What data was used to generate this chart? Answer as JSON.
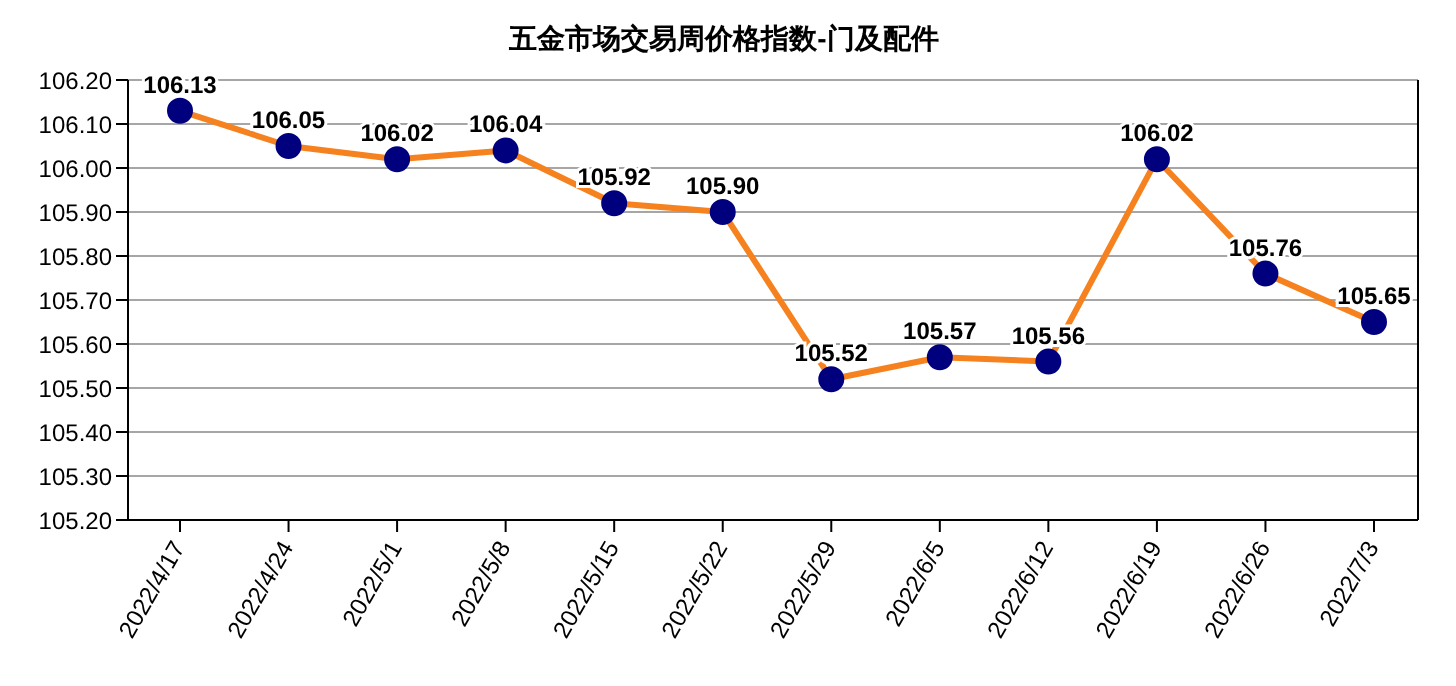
{
  "chart_data": {
    "type": "line",
    "title": "五金市场交易周价格指数-门及配件",
    "categories": [
      "2022/4/17",
      "2022/4/24",
      "2022/5/1",
      "2022/5/8",
      "2022/5/15",
      "2022/5/22",
      "2022/5/29",
      "2022/6/5",
      "2022/6/12",
      "2022/6/19",
      "2022/6/26",
      "2022/7/3"
    ],
    "series": [
      {
        "color": "#f5821f",
        "values": [
          106.13,
          106.05,
          106.02,
          106.04,
          105.92,
          105.9,
          105.52,
          105.57,
          105.56,
          106.02,
          105.76,
          105.65
        ],
        "value_labels": [
          "106.13",
          "106.05",
          "106.02",
          "106.04",
          "105.92",
          "105.90",
          "105.52",
          "105.57",
          "105.56",
          "106.02",
          "105.76",
          "105.65"
        ]
      }
    ],
    "ylim": [
      105.2,
      106.2
    ],
    "yticks": [
      {
        "value": 105.2,
        "label": "105.20"
      },
      {
        "value": 105.3,
        "label": "105.30"
      },
      {
        "value": 105.4,
        "label": "105.40"
      },
      {
        "value": 105.5,
        "label": "105.50"
      },
      {
        "value": 105.6,
        "label": "105.60"
      },
      {
        "value": 105.7,
        "label": "105.70"
      },
      {
        "value": 105.8,
        "label": "105.80"
      },
      {
        "value": 105.9,
        "label": "105.90"
      },
      {
        "value": 106.0,
        "label": "106.00"
      },
      {
        "value": 106.1,
        "label": "106.10"
      },
      {
        "value": 106.2,
        "label": "106.20"
      }
    ],
    "grid": "y",
    "marker": "circle",
    "line_style": "solid",
    "legend": false
  }
}
